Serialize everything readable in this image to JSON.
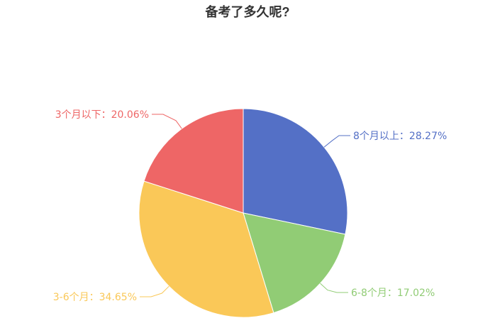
{
  "chart_data": {
    "type": "pie",
    "title": "备考了多久呢?",
    "slices": [
      {
        "label": "8个月以上",
        "value": 28.27,
        "color": "#5470c6"
      },
      {
        "label": "6-8个月",
        "value": 17.02,
        "color": "#91cc75"
      },
      {
        "label": "3-6个月",
        "value": 34.65,
        "color": "#fac858"
      },
      {
        "label": "3个月以下",
        "value": 20.06,
        "color": "#ee6666"
      }
    ],
    "value_suffix": "%",
    "label_separator": "："
  }
}
